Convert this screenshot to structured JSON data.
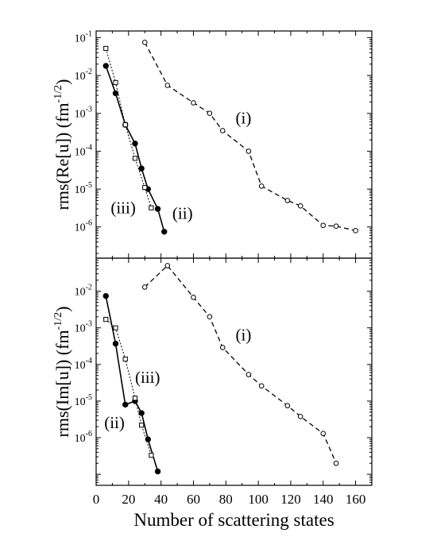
{
  "chart_data": [
    {
      "type": "line",
      "panel": "top",
      "ylabel": "rms(Re[u]) (fm",
      "ylabel_sup": "-1/2",
      "ylabel_tail": ")",
      "xlabel": "",
      "y_scale": "log",
      "xlim": [
        0,
        170
      ],
      "ylim": [
        1.5e-07,
        0.15
      ],
      "x_ticks": [
        0,
        20,
        40,
        60,
        80,
        100,
        120,
        140,
        160
      ],
      "y_ticks": [
        {
          "value": 0.1,
          "base": "10",
          "exp": "-1"
        },
        {
          "value": 0.01,
          "base": "10",
          "exp": "-2"
        },
        {
          "value": 0.001,
          "base": "10",
          "exp": "-3"
        },
        {
          "value": 0.0001,
          "base": "10",
          "exp": "-4"
        },
        {
          "value": 1e-05,
          "base": "10",
          "exp": "-5"
        },
        {
          "value": 1e-06,
          "base": "10",
          "exp": "-6"
        }
      ],
      "series": [
        {
          "name": "(i)",
          "style": "dashed",
          "marker": "open-circle",
          "x": [
            30,
            44,
            60,
            70,
            78,
            94,
            102,
            118,
            126,
            140,
            148,
            160
          ],
          "y": [
            0.075,
            0.0055,
            0.0019,
            0.001,
            0.00035,
            0.0001,
            1.2e-05,
            5e-06,
            3.6e-06,
            1.1e-06,
            1.05e-06,
            8e-07
          ],
          "label_x": 86,
          "label_y": 0.00075
        },
        {
          "name": "(ii)",
          "style": "solid",
          "marker": "filled-circle",
          "x": [
            6,
            12,
            18,
            24,
            28,
            32,
            38,
            42
          ],
          "y": [
            0.018,
            0.0034,
            0.0005,
            0.00016,
            3.5e-05,
            1e-05,
            3e-06,
            7.5e-07
          ],
          "label_x": 47,
          "label_y": 2.3e-06
        },
        {
          "name": "(iii)",
          "style": "dotted",
          "marker": "open-square",
          "x": [
            6,
            12,
            18,
            24,
            30,
            34
          ],
          "y": [
            0.052,
            0.0065,
            0.0005,
            6.5e-05,
            1.1e-05,
            3.2e-06
          ],
          "label_x": 9,
          "label_y": 3.2e-06
        }
      ]
    },
    {
      "type": "line",
      "panel": "bottom",
      "ylabel": "rms(Im[u]) (fm",
      "ylabel_sup": "-1/2",
      "ylabel_tail": ")",
      "xlabel": "Number of scattering states",
      "y_scale": "log",
      "xlim": [
        0,
        170
      ],
      "ylim": [
        5e-08,
        0.08
      ],
      "x_ticks": [
        0,
        20,
        40,
        60,
        80,
        100,
        120,
        140,
        160
      ],
      "y_ticks": [
        {
          "value": 0.01,
          "base": "10",
          "exp": "-2"
        },
        {
          "value": 0.001,
          "base": "10",
          "exp": "-3"
        },
        {
          "value": 0.0001,
          "base": "10",
          "exp": "-4"
        },
        {
          "value": 1e-05,
          "base": "10",
          "exp": "-5"
        },
        {
          "value": 1e-06,
          "base": "10",
          "exp": "-6"
        }
      ],
      "series": [
        {
          "name": "(i)",
          "style": "dashed",
          "marker": "open-circle",
          "x": [
            30,
            44,
            60,
            70,
            78,
            94,
            102,
            118,
            126,
            140,
            148
          ],
          "y": [
            0.013,
            0.05,
            0.0068,
            0.002,
            0.00029,
            5.3e-05,
            2.6e-05,
            7.5e-06,
            3.8e-06,
            1.3e-06,
            2e-07
          ],
          "label_x": 86,
          "label_y": 0.00065
        },
        {
          "name": "(ii)",
          "style": "solid",
          "marker": "filled-circle",
          "x": [
            6,
            12,
            18,
            24,
            28,
            32,
            38
          ],
          "y": [
            0.0074,
            0.00037,
            8e-06,
            1e-05,
            4.7e-06,
            9e-07,
            1.2e-07
          ],
          "label_x": 5,
          "label_y": 2.6e-06
        },
        {
          "name": "(iii)",
          "style": "dotted",
          "marker": "open-square",
          "x": [
            6,
            12,
            18,
            24,
            28,
            34
          ],
          "y": [
            0.0017,
            0.001,
            0.00014,
            1.2e-05,
            2.2e-06,
            3.3e-07
          ],
          "label_x": 24,
          "label_y": 4.5e-05
        }
      ]
    }
  ]
}
